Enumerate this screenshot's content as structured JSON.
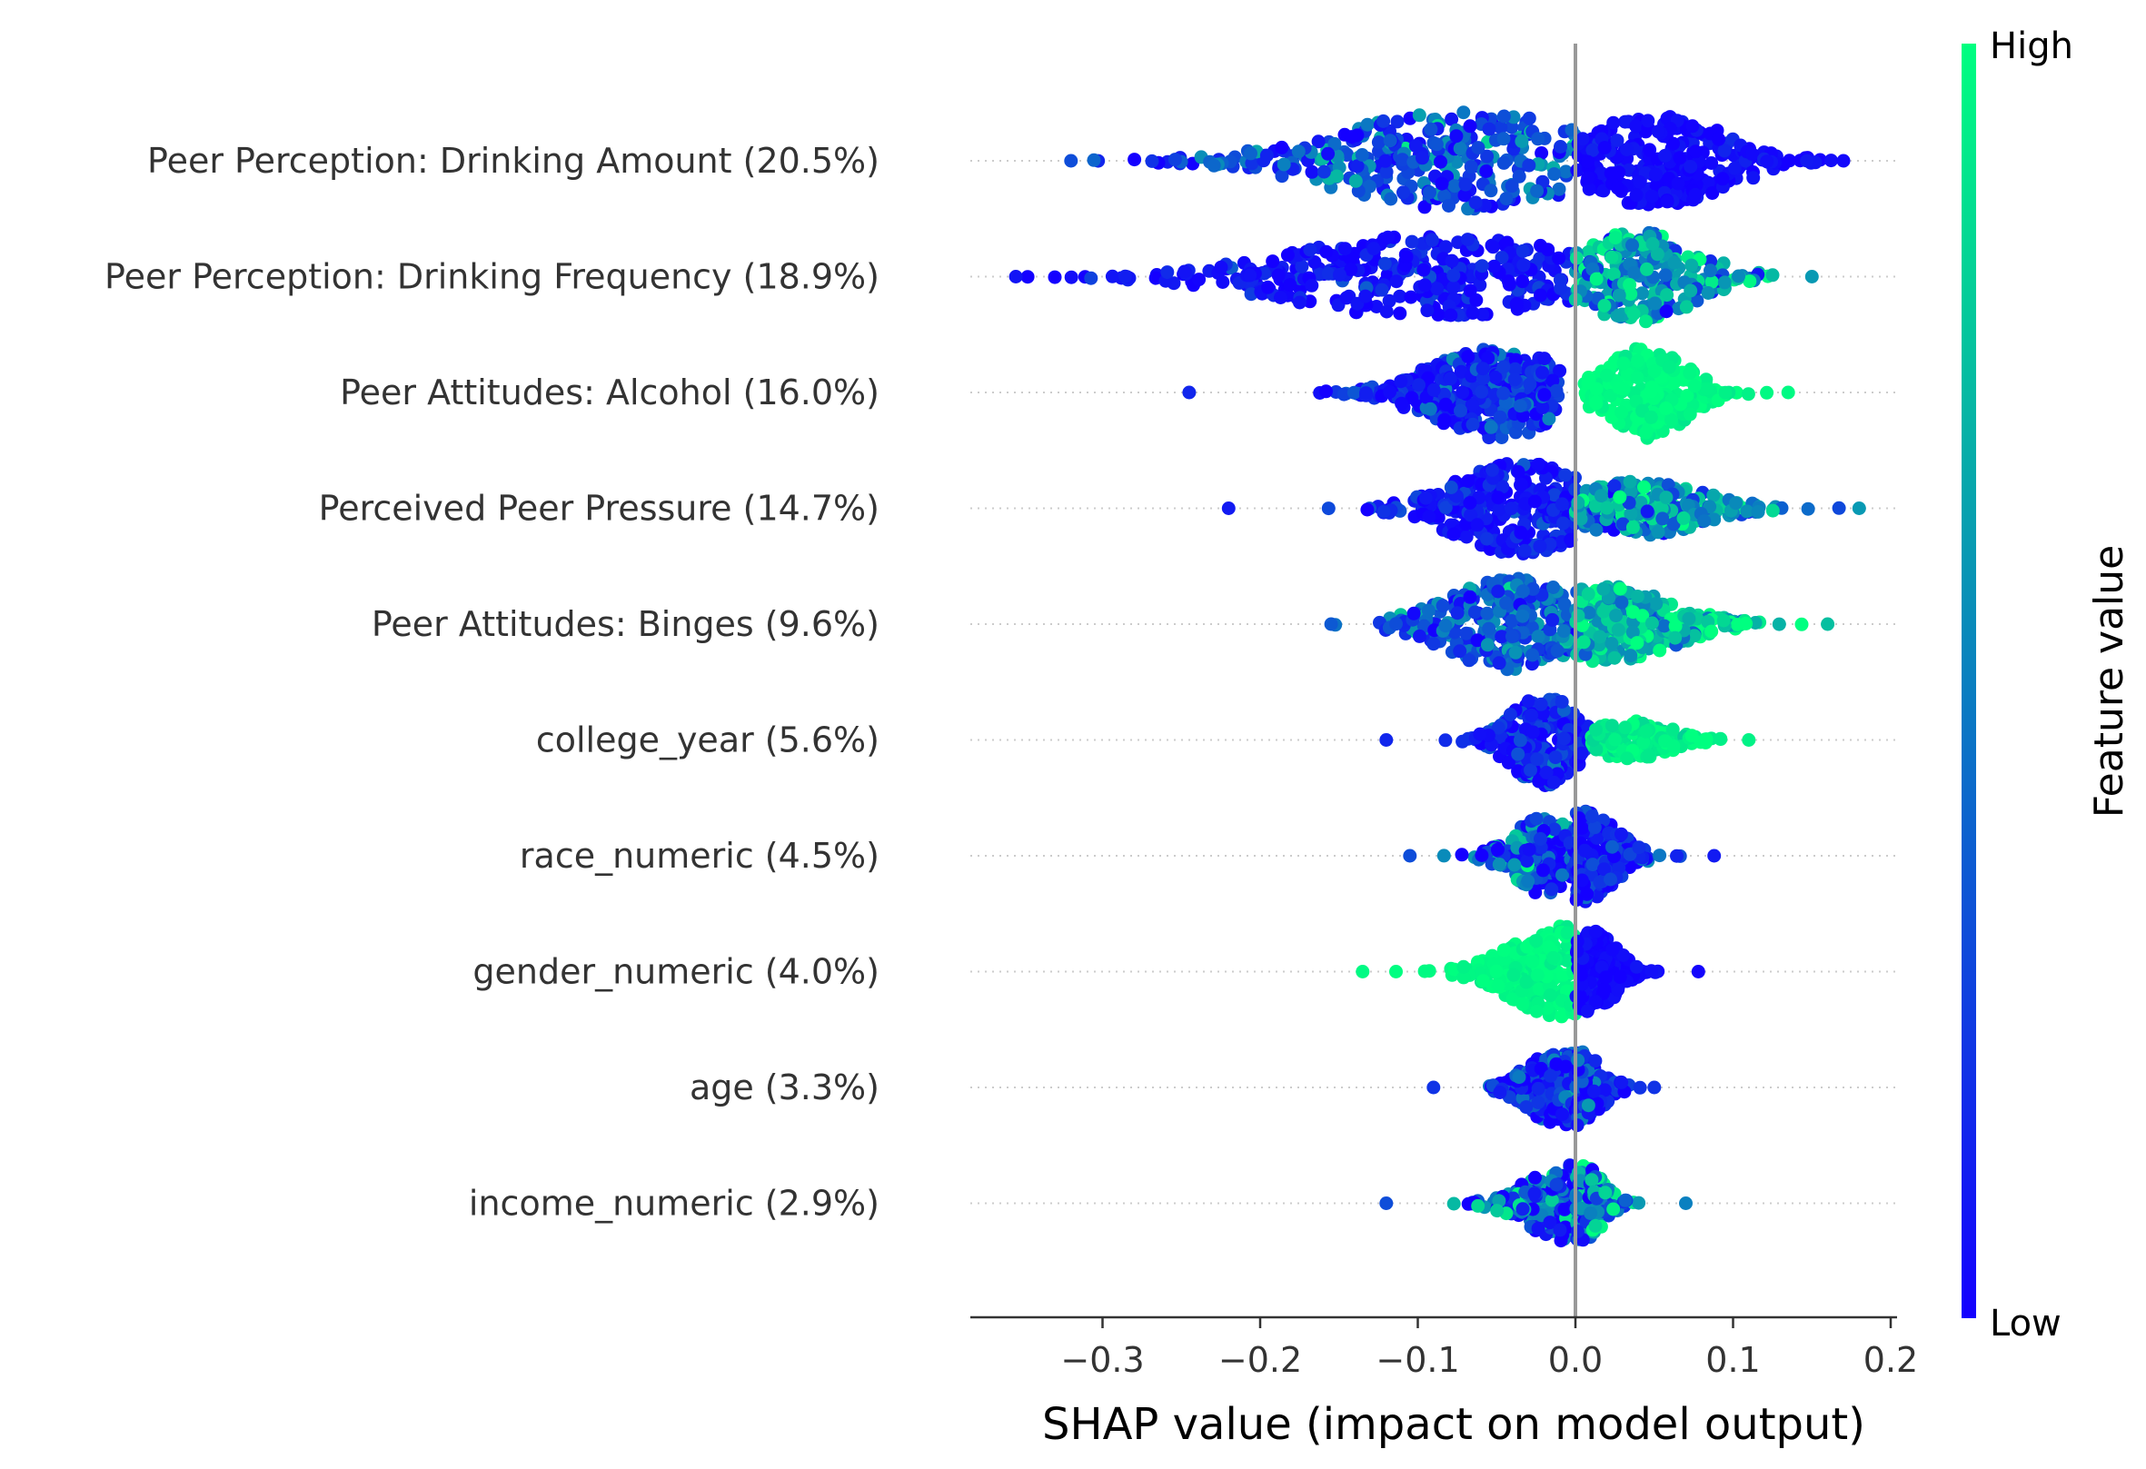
{
  "chart_data": {
    "type": "scatter",
    "subtype": "shap-beeswarm",
    "title": "",
    "xlabel": "SHAP value (impact on model output)",
    "xlim": [
      -0.38,
      0.205
    ],
    "xticks": [
      -0.3,
      -0.2,
      -0.1,
      0.0,
      0.1,
      0.2
    ],
    "xtick_labels": [
      "−0.3",
      "−0.2",
      "−0.1",
      "0.0",
      "0.1",
      "0.2"
    ],
    "grid": false,
    "colorbar": {
      "label": "Feature value",
      "high_label": "High",
      "low_label": "Low",
      "colors": {
        "low": "#1400ff",
        "high": "#00ff80"
      }
    },
    "zero_line_color": "#999999",
    "features": [
      {
        "label": "Peer Perception: Drinking Amount (20.5%)",
        "min": -0.32,
        "max": 0.17,
        "segments": [
          {
            "lo": -0.32,
            "hi": -0.0,
            "center": -0.07,
            "spread": 0.08,
            "width": 0.45,
            "color_mean": 0.3,
            "color_sd": 0.2,
            "n": 320
          },
          {
            "lo": 0.0,
            "hi": 0.17,
            "center": 0.05,
            "spread": 0.045,
            "width": 0.42,
            "color_mean": 0.03,
            "color_sd": 0.05,
            "n": 260
          }
        ]
      },
      {
        "label": "Peer Perception: Drinking Frequency (18.9%)",
        "min": -0.355,
        "max": 0.15,
        "segments": [
          {
            "lo": -0.355,
            "hi": 0.0,
            "center": -0.09,
            "spread": 0.09,
            "width": 0.38,
            "color_mean": 0.08,
            "color_sd": 0.1,
            "n": 330
          },
          {
            "lo": 0.0,
            "hi": 0.15,
            "center": 0.04,
            "spread": 0.035,
            "width": 0.42,
            "color_mean": 0.6,
            "color_sd": 0.25,
            "n": 230
          }
        ]
      },
      {
        "label": "Peer Attitudes: Alcohol (16.0%)",
        "min": -0.245,
        "max": 0.135,
        "segments": [
          {
            "lo": -0.245,
            "hi": -0.01,
            "center": -0.05,
            "spread": 0.04,
            "width": 0.42,
            "color_mean": 0.15,
            "color_sd": 0.15,
            "n": 330
          },
          {
            "lo": 0.005,
            "hi": 0.135,
            "center": 0.045,
            "spread": 0.025,
            "width": 0.42,
            "color_mean": 0.98,
            "color_sd": 0.03,
            "n": 260
          }
        ]
      },
      {
        "label": "Perceived Peer Pressure (14.7%)",
        "min": -0.22,
        "max": 0.18,
        "segments": [
          {
            "lo": -0.22,
            "hi": 0.0,
            "center": -0.035,
            "spread": 0.04,
            "width": 0.42,
            "color_mean": 0.1,
            "color_sd": 0.1,
            "n": 300
          },
          {
            "lo": 0.0,
            "hi": 0.18,
            "center": 0.04,
            "spread": 0.04,
            "width": 0.25,
            "color_mean": 0.6,
            "color_sd": 0.25,
            "n": 230
          }
        ]
      },
      {
        "label": "Peer Attitudes: Binges (9.6%)",
        "min": -0.155,
        "max": 0.16,
        "segments": [
          {
            "lo": -0.155,
            "hi": 0.0,
            "center": -0.04,
            "spread": 0.04,
            "width": 0.42,
            "color_mean": 0.35,
            "color_sd": 0.2,
            "n": 280
          },
          {
            "lo": 0.0,
            "hi": 0.16,
            "center": 0.02,
            "spread": 0.04,
            "width": 0.35,
            "color_mean": 0.75,
            "color_sd": 0.2,
            "n": 260
          }
        ]
      },
      {
        "label": "college_year (5.6%)",
        "min": -0.12,
        "max": 0.11,
        "segments": [
          {
            "lo": -0.12,
            "hi": 0.01,
            "center": -0.02,
            "spread": 0.02,
            "width": 0.42,
            "color_mean": 0.15,
            "color_sd": 0.15,
            "n": 230
          },
          {
            "lo": 0.01,
            "hi": 0.11,
            "center": 0.035,
            "spread": 0.025,
            "width": 0.18,
            "color_mean": 0.95,
            "color_sd": 0.06,
            "n": 120
          }
        ]
      },
      {
        "label": "race_numeric (4.5%)",
        "min": -0.105,
        "max": 0.088,
        "segments": [
          {
            "lo": -0.105,
            "hi": 0.0,
            "center": -0.02,
            "spread": 0.02,
            "width": 0.35,
            "color_mean": 0.3,
            "color_sd": 0.3,
            "n": 200
          },
          {
            "lo": 0.0,
            "hi": 0.088,
            "center": 0.005,
            "spread": 0.02,
            "width": 0.42,
            "color_mean": 0.1,
            "color_sd": 0.15,
            "n": 200
          }
        ]
      },
      {
        "label": "gender_numeric (4.0%)",
        "min": -0.135,
        "max": 0.078,
        "segments": [
          {
            "lo": -0.135,
            "hi": 0.0,
            "center": -0.01,
            "spread": 0.03,
            "width": 0.42,
            "color_mean": 0.98,
            "color_sd": 0.03,
            "n": 230
          },
          {
            "lo": 0.0,
            "hi": 0.078,
            "center": 0.01,
            "spread": 0.015,
            "width": 0.38,
            "color_mean": 0.02,
            "color_sd": 0.04,
            "n": 190
          }
        ]
      },
      {
        "label": "age (3.3%)",
        "min": -0.09,
        "max": 0.05,
        "segments": [
          {
            "lo": -0.09,
            "hi": 0.0,
            "center": -0.01,
            "spread": 0.02,
            "width": 0.35,
            "color_mean": 0.2,
            "color_sd": 0.2,
            "n": 160
          },
          {
            "lo": 0.0,
            "hi": 0.05,
            "center": 0.0,
            "spread": 0.015,
            "width": 0.35,
            "color_mean": 0.2,
            "color_sd": 0.2,
            "n": 120
          }
        ]
      },
      {
        "label": "income_numeric (2.9%)",
        "min": -0.12,
        "max": 0.07,
        "segments": [
          {
            "lo": -0.12,
            "hi": 0.0,
            "center": -0.005,
            "spread": 0.025,
            "width": 0.35,
            "color_mean": 0.3,
            "color_sd": 0.3,
            "n": 160
          },
          {
            "lo": 0.0,
            "hi": 0.07,
            "center": 0.005,
            "spread": 0.012,
            "width": 0.35,
            "color_mean": 0.5,
            "color_sd": 0.35,
            "n": 130
          }
        ]
      }
    ]
  }
}
